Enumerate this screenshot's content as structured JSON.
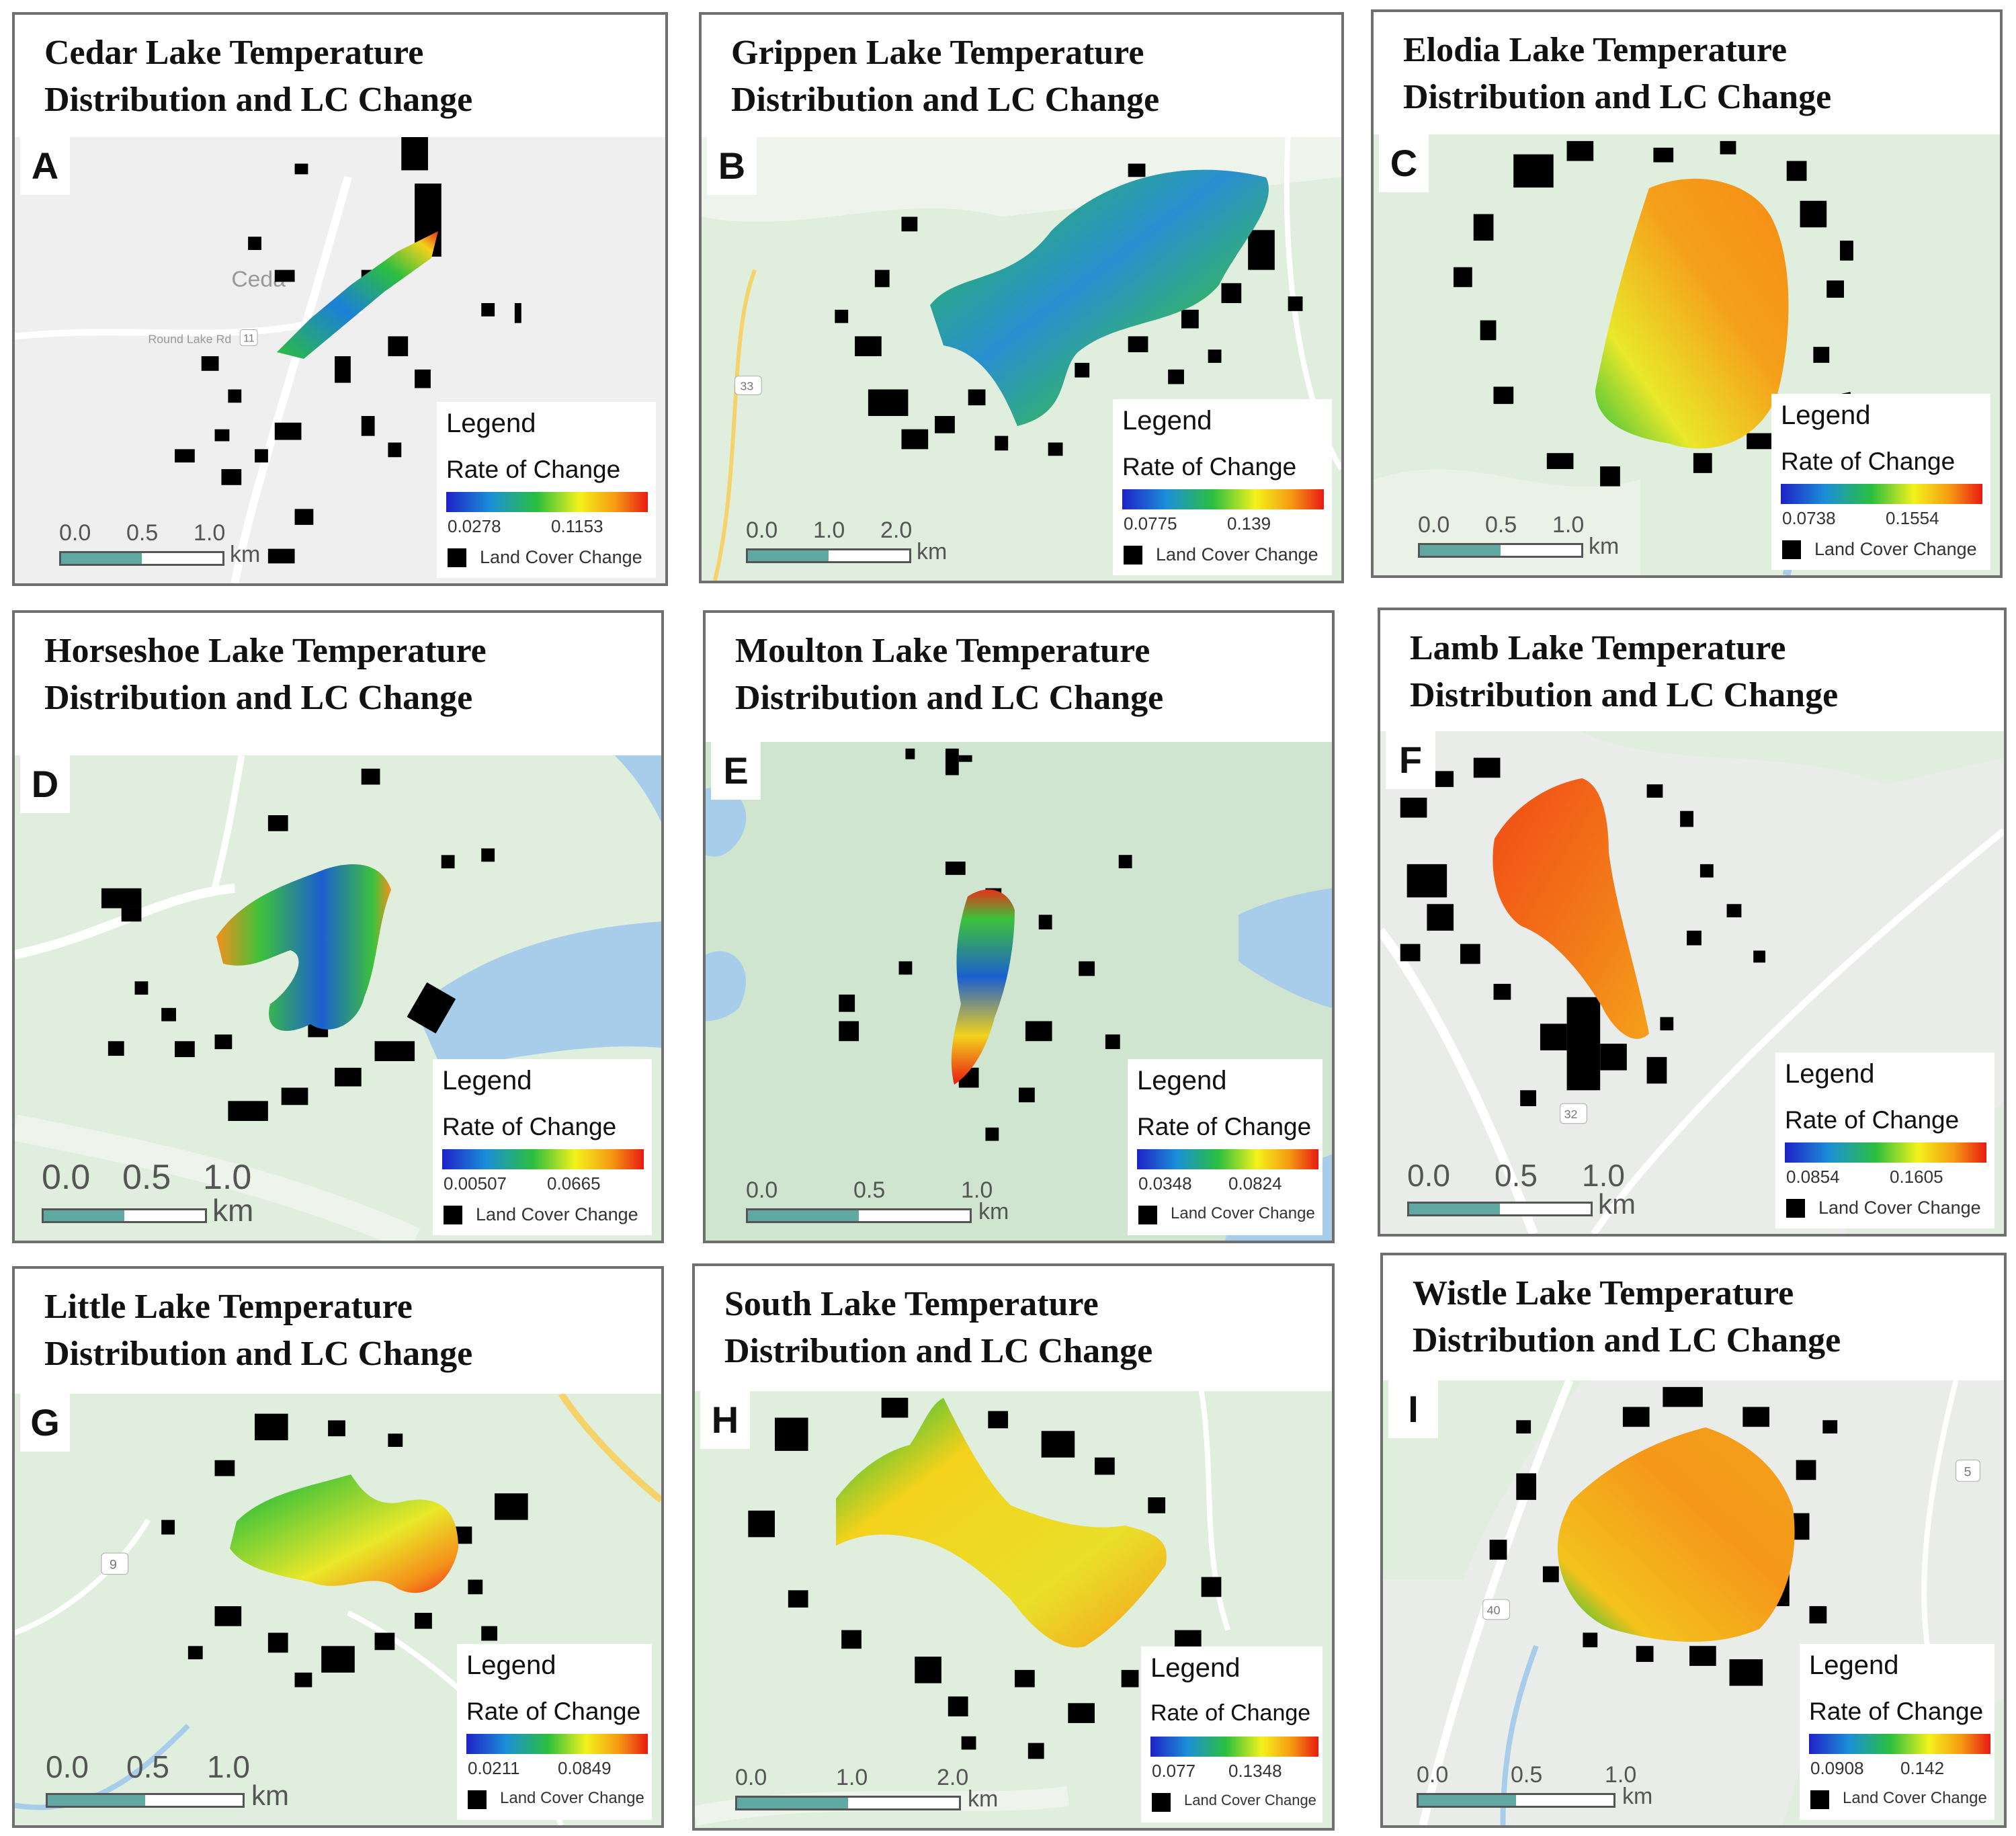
{
  "colors": {
    "map_background": "#dfeedd",
    "road": "#f4f4f4",
    "water": "#a8cdeb",
    "land_cover_change": "#000000"
  },
  "legend": {
    "heading": "Legend",
    "ramp_label": "Rate of Change",
    "swatch_label": "Land Cover Change"
  },
  "panels": [
    {
      "letter": "A",
      "title": "Cedar Lake Temperature\nDistribution and LC Change",
      "ramp_min": "0.0278",
      "ramp_max": "0.1153",
      "scale": [
        "0.0",
        "0.5",
        "1.0"
      ],
      "unit": "km",
      "road_label": "Round Lake Rd",
      "route": "11",
      "town": "Ceda",
      "lake_color": "mixed-blue-green"
    },
    {
      "letter": "B",
      "title": "Grippen Lake Temperature\nDistribution and LC Change",
      "ramp_min": "0.0775",
      "ramp_max": "0.139",
      "scale": [
        "0.0",
        "1.0",
        "2.0"
      ],
      "unit": "km",
      "route": "33",
      "lake_color": "mixed-blue-green"
    },
    {
      "letter": "C",
      "title": "Elodia Lake Temperature\nDistribution and LC Change",
      "ramp_min": "0.0738",
      "ramp_max": "0.1554",
      "scale": [
        "0.0",
        "0.5",
        "1.0"
      ],
      "unit": "km",
      "lake_color": "orange"
    },
    {
      "letter": "D",
      "title": "Horseshoe Lake Temperature\nDistribution and LC Change",
      "ramp_min": "0.00507",
      "ramp_max": "0.0665",
      "scale": [
        "0.0",
        "0.5",
        "1.0"
      ],
      "unit": "km",
      "lake_color": "mixed-blue-green"
    },
    {
      "letter": "E",
      "title": "Moulton Lake Temperature\nDistribution and LC Change",
      "ramp_min": "0.0348",
      "ramp_max": "0.0824",
      "scale": [
        "0.0",
        "0.5",
        "1.0"
      ],
      "unit": "km",
      "lake_color": "mixed-blue-yellow"
    },
    {
      "letter": "F",
      "title": "Lamb Lake Temperature\nDistribution and LC Change",
      "ramp_min": "0.0854",
      "ramp_max": "0.1605",
      "scale": [
        "0.0",
        "0.5",
        "1.0"
      ],
      "unit": "km",
      "route": "32",
      "lake_color": "orange-red"
    },
    {
      "letter": "G",
      "title": "Little Lake Temperature\nDistribution and LC Change",
      "ramp_min": "0.0211",
      "ramp_max": "0.0849",
      "scale": [
        "0.0",
        "0.5",
        "1.0"
      ],
      "unit": "km",
      "route": "9",
      "lake_color": "green-orange"
    },
    {
      "letter": "H",
      "title": "South Lake Temperature\nDistribution and LC Change",
      "ramp_min": "0.077",
      "ramp_max": "0.1348",
      "scale": [
        "0.0",
        "1.0",
        "2.0"
      ],
      "unit": "km",
      "lake_color": "yellow"
    },
    {
      "letter": "I",
      "title": "Wistle Lake Temperature\nDistribution and LC Change",
      "ramp_min": "0.0908",
      "ramp_max": "0.142",
      "scale": [
        "0.0",
        "0.5",
        "1.0"
      ],
      "unit": "km",
      "route": "5",
      "route_2": "40",
      "lake_color": "orange"
    }
  ]
}
